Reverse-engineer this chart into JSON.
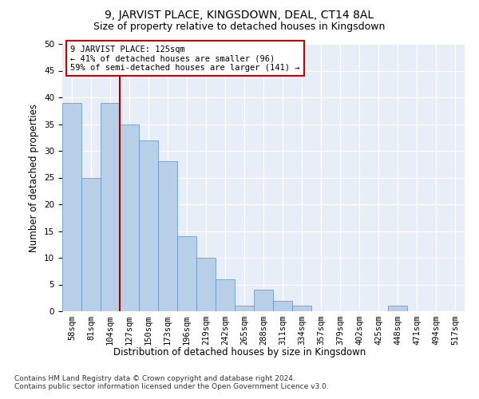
{
  "title": "9, JARVIST PLACE, KINGSDOWN, DEAL, CT14 8AL",
  "subtitle": "Size of property relative to detached houses in Kingsdown",
  "xlabel": "Distribution of detached houses by size in Kingsdown",
  "ylabel": "Number of detached properties",
  "bin_labels": [
    "58sqm",
    "81sqm",
    "104sqm",
    "127sqm",
    "150sqm",
    "173sqm",
    "196sqm",
    "219sqm",
    "242sqm",
    "265sqm",
    "288sqm",
    "311sqm",
    "334sqm",
    "357sqm",
    "379sqm",
    "402sqm",
    "425sqm",
    "448sqm",
    "471sqm",
    "494sqm",
    "517sqm"
  ],
  "bar_heights": [
    39,
    25,
    39,
    35,
    32,
    28,
    14,
    10,
    6,
    1,
    4,
    2,
    1,
    0,
    0,
    0,
    0,
    1,
    0,
    0,
    0
  ],
  "ylim": [
    0,
    50
  ],
  "yticks": [
    0,
    5,
    10,
    15,
    20,
    25,
    30,
    35,
    40,
    45,
    50
  ],
  "bar_color": "#b8cfe8",
  "bar_edge_color": "#5a8fc0",
  "vline_color": "#aa0000",
  "annotation_text": "9 JARVIST PLACE: 125sqm\n← 41% of detached houses are smaller (96)\n59% of semi-detached houses are larger (141) →",
  "annotation_box_color": "#ffffff",
  "annotation_box_edge": "#cc0000",
  "footer": "Contains HM Land Registry data © Crown copyright and database right 2024.\nContains public sector information licensed under the Open Government Licence v3.0.",
  "bg_color": "#e8eef8",
  "grid_color": "#ffffff",
  "title_fontsize": 10,
  "subtitle_fontsize": 9,
  "axis_label_fontsize": 8.5,
  "tick_fontsize": 7.5,
  "footer_fontsize": 6.5
}
